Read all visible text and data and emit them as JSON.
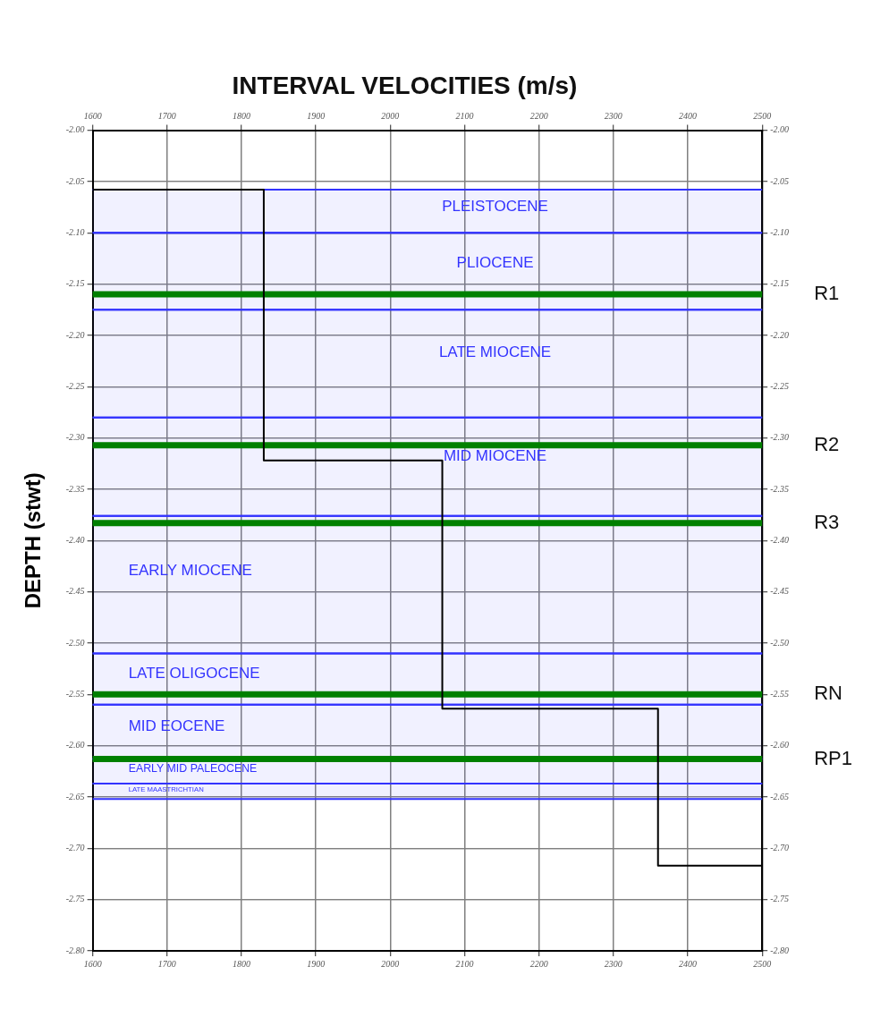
{
  "chart_data": {
    "type": "line",
    "title": "INTERVAL VELOCITIES (m/s)",
    "ylabel": "DEPTH (stwt)",
    "series": [
      {
        "color": "#000000",
        "x": [
          1600,
          1830,
          1830,
          2070,
          2070,
          2360,
          2360,
          2500
        ],
        "values": [
          -2.058,
          -2.058,
          -2.322,
          -2.322,
          -2.564,
          -2.564,
          -2.717,
          -2.717
        ]
      }
    ],
    "xlim": [
      1600,
      2500
    ],
    "xticks": [
      1600,
      1700,
      1800,
      1900,
      2000,
      2100,
      2200,
      2300,
      2400,
      2500
    ],
    "x2lim": [
      1600,
      2500
    ],
    "x2ticks": [
      1600,
      1700,
      1800,
      1900,
      2000,
      2100,
      2200,
      2300,
      2400,
      2500
    ],
    "ylim": [
      -2.8,
      -2.0
    ],
    "yticks": [
      {
        "value": -2.0,
        "label": "-2.00"
      },
      -2.05,
      {
        "value": -2.1,
        "label": "-2.10"
      },
      -2.15,
      {
        "value": -2.2,
        "label": "-2.20"
      },
      -2.25,
      {
        "value": -2.3,
        "label": "-2.30"
      },
      -2.35,
      {
        "value": -2.4,
        "label": "-2.40"
      },
      -2.45,
      {
        "value": -2.5,
        "label": "-2.50"
      },
      -2.55,
      {
        "value": -2.6,
        "label": "-2.60"
      },
      -2.65,
      {
        "value": -2.7,
        "label": "-2.70"
      },
      -2.75,
      {
        "value": -2.8,
        "label": "-2.80"
      }
    ],
    "y2lim": [
      -2.8,
      -2.0
    ],
    "y2ticks": [
      {
        "value": -2.0,
        "label": "-2.00"
      },
      -2.05,
      {
        "value": -2.1,
        "label": "-2.10"
      },
      -2.15,
      {
        "value": -2.2,
        "label": "-2.20"
      },
      -2.25,
      {
        "value": -2.3,
        "label": "-2.30"
      },
      -2.35,
      {
        "value": -2.4,
        "label": "-2.40"
      },
      -2.45,
      {
        "value": -2.5,
        "label": "-2.50"
      },
      -2.55,
      {
        "value": -2.6,
        "label": "-2.60"
      },
      -2.65,
      {
        "value": -2.7,
        "label": "-2.70"
      },
      -2.75,
      {
        "value": -2.8,
        "label": "-2.80"
      }
    ],
    "grid": true,
    "marker": "none",
    "line_style": "solid",
    "bands": [
      {
        "axis": "y",
        "from": -2.058,
        "to": -2.1,
        "label": "PLEISTOCENE",
        "color": "#3333ff"
      },
      {
        "axis": "y",
        "from": -2.1,
        "to": -2.175,
        "label": "PLIOCENE",
        "color": "#3333ff"
      },
      {
        "axis": "y",
        "from": -2.175,
        "to": -2.28,
        "label": "LATE MIOCENE",
        "color": "#3333ff"
      },
      {
        "axis": "y",
        "from": -2.28,
        "to": -2.376,
        "label": "MID MIOCENE",
        "color": "#3333ff"
      },
      {
        "axis": "y",
        "from": -2.376,
        "to": -2.51,
        "label": "EARLY MIOCENE",
        "color": "#3333ff"
      },
      {
        "axis": "y",
        "from": -2.51,
        "to": -2.56,
        "label": "LATE OLIGOCENE",
        "color": "#3333ff"
      },
      {
        "axis": "y",
        "from": -2.56,
        "to": -2.613,
        "label": "MID EOCENE",
        "color": "#3333ff"
      },
      {
        "axis": "y",
        "from": -2.613,
        "to": -2.637,
        "label": "EARLY MID PALEOCENE",
        "color": "#3333ff"
      },
      {
        "axis": "y",
        "from": -2.637,
        "to": -2.652,
        "label": "LATE MAASTRICHTIAN",
        "color": "#3333ff"
      }
    ],
    "ref_lines": [
      {
        "axis": "y",
        "value": -2.16,
        "color": "#008000",
        "label": "R1"
      },
      {
        "axis": "y",
        "value": -2.307,
        "color": "#008000",
        "label": "R2"
      },
      {
        "axis": "y",
        "value": -2.383,
        "color": "#008000",
        "label": "R3"
      },
      {
        "axis": "y",
        "value": -2.55,
        "color": "#008000",
        "label": "RN"
      },
      {
        "axis": "y",
        "value": -2.613,
        "color": "#008000",
        "label": "RP1"
      }
    ]
  }
}
